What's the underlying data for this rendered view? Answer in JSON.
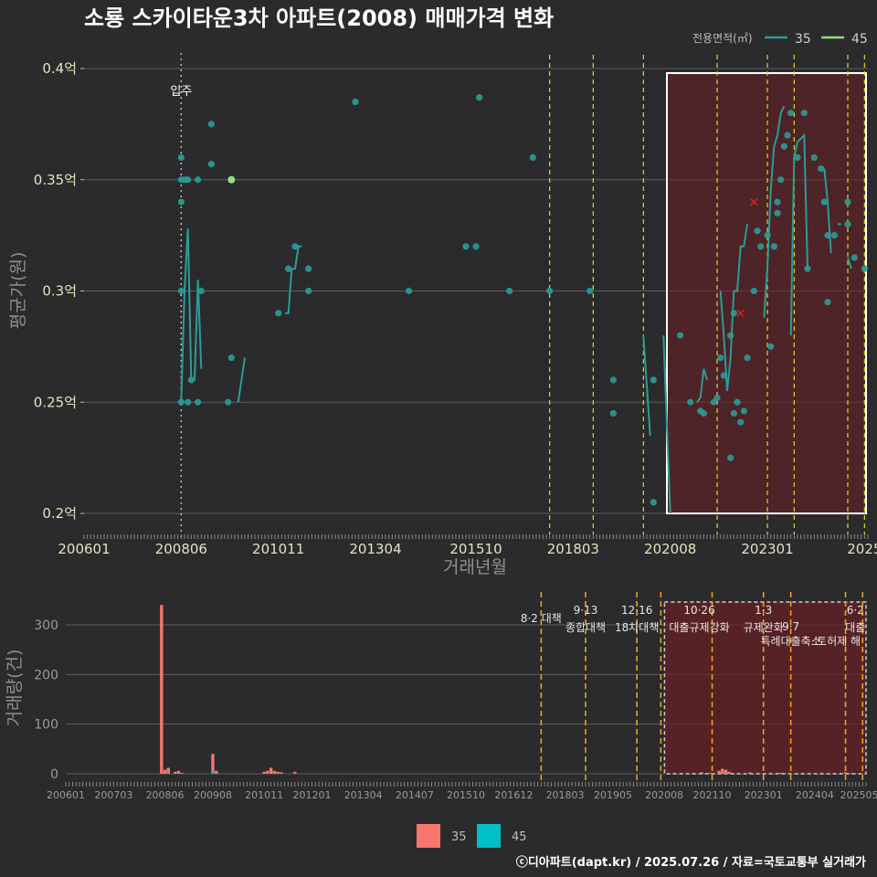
{
  "title": "소룡 스카이타운3차 아파트(2008) 매매가격 변화",
  "footer": "ⓒ디아파트(dapt.kr) / 2025.07.26 / 자료=국토교통부 실거래가",
  "colors": {
    "bg": "#2b2b2d",
    "grid": "#5c5c5c",
    "s35_line": "#2a9d96",
    "s45_line": "#8fe07a",
    "vol35": "#f8766d",
    "vol45": "#00bfc4",
    "policy": "#d9d92a",
    "policy_vol": "#e8a21a",
    "highlight": "#6b1f24",
    "cancel": "#e32020"
  },
  "price_chart": {
    "ylabel": "평균가(원)",
    "xlabel": "거래년월",
    "ytick_labels": [
      "0.2억",
      "0.25억",
      "0.3억",
      "0.35억",
      "0.4억"
    ],
    "xtick_labels": [
      "200601",
      "200806",
      "201011",
      "201304",
      "201510",
      "201803",
      "202008",
      "202301",
      "2025"
    ],
    "legend_title": "전용면적(㎡)",
    "legend": [
      "35",
      "45"
    ],
    "move_in_label": "입주"
  },
  "volume_chart": {
    "ylabel": "거래량(건)",
    "ytick_labels": [
      "0",
      "100",
      "200",
      "300"
    ],
    "xtick_labels": [
      "200601",
      "200703",
      "200806",
      "200908",
      "201011",
      "201201",
      "201304",
      "201407",
      "201510",
      "201612",
      "201803",
      "201905",
      "202008",
      "202110",
      "202301",
      "202404",
      "202505"
    ],
    "legend": [
      "35",
      "45"
    ],
    "policies": [
      {
        "date": "8·2 대책",
        "text": ""
      },
      {
        "date": "9·13",
        "text": "종합대책"
      },
      {
        "date": "12·16",
        "text": "18차대책"
      },
      {
        "date": "10·26",
        "text": "대출규제강화"
      },
      {
        "date": "1·3",
        "text": "규제완화"
      },
      {
        "date": "9·7",
        "text": "특례대출축소"
      },
      {
        "date": "",
        "text": "토허제 해"
      },
      {
        "date": "6·2",
        "text": "대출"
      }
    ]
  },
  "chart_data": [
    {
      "type": "line",
      "title": "소룡 스카이타운3차 아파트(2008) 매매가격 변화",
      "xlabel": "거래년월",
      "ylabel": "평균가(원)",
      "ylim": [
        0.2,
        0.4
      ],
      "y_unit": "억",
      "xlim": [
        "2006-01",
        "2025-07"
      ],
      "grid": true,
      "legend_position": "top-right",
      "series": [
        {
          "name": "35",
          "line_segments": [
            [
              [
                "2008-06",
                0.25
              ],
              [
                "2008-07",
                0.3
              ],
              [
                "2008-08",
                0.328
              ],
              [
                "2008-09",
                0.26
              ],
              [
                "2008-10",
                0.26
              ],
              [
                "2008-11",
                0.305
              ],
              [
                "2008-12",
                0.265
              ]
            ],
            [
              [
                "2009-11",
                0.25
              ],
              [
                "2010-01",
                0.27
              ]
            ],
            [
              [
                "2011-01",
                0.29
              ],
              [
                "2011-02",
                0.29
              ],
              [
                "2011-03",
                0.31
              ],
              [
                "2011-04",
                0.31
              ],
              [
                "2011-05",
                0.32
              ],
              [
                "2011-06",
                0.32
              ]
            ],
            [
              [
                "2019-12",
                0.28
              ],
              [
                "2020-02",
                0.235
              ]
            ],
            [
              [
                "2020-06",
                0.28
              ],
              [
                "2020-08",
                0.2
              ]
            ],
            [
              [
                "2021-04",
                0.25
              ],
              [
                "2021-05",
                0.252
              ],
              [
                "2021-06",
                0.265
              ],
              [
                "2021-07",
                0.26
              ]
            ],
            [
              [
                "2021-11",
                0.3
              ],
              [
                "2021-12",
                0.28
              ],
              [
                "2022-01",
                0.255
              ],
              [
                "2022-02",
                0.27
              ],
              [
                "2022-03",
                0.3
              ],
              [
                "2022-04",
                0.3
              ],
              [
                "2022-05",
                0.32
              ],
              [
                "2022-06",
                0.32
              ],
              [
                "2022-07",
                0.33
              ]
            ],
            [
              [
                "2022-12",
                0.288
              ],
              [
                "2023-01",
                0.31
              ],
              [
                "2023-02",
                0.345
              ],
              [
                "2023-03",
                0.365
              ],
              [
                "2023-04",
                0.37
              ],
              [
                "2023-05",
                0.38
              ],
              [
                "2023-06",
                0.383
              ]
            ],
            [
              [
                "2023-08",
                0.28
              ],
              [
                "2023-09",
                0.36
              ],
              [
                "2023-10",
                0.367
              ],
              [
                "2023-12",
                0.37
              ],
              [
                "2024-01",
                0.31
              ]
            ],
            [
              [
                "2024-06",
                0.355
              ],
              [
                "2024-07",
                0.34
              ],
              [
                "2024-08",
                0.317
              ]
            ],
            [
              [
                "2024-10",
                0.33
              ],
              [
                "2024-11",
                0.33
              ]
            ],
            [
              [
                "2025-01",
                0.315
              ],
              [
                "2025-02",
                0.31
              ]
            ]
          ],
          "points": [
            [
              "2008-06",
              0.36
            ],
            [
              "2008-06",
              0.35
            ],
            [
              "2008-06",
              0.34
            ],
            [
              "2008-06",
              0.3
            ],
            [
              "2008-06",
              0.25
            ],
            [
              "2008-07",
              0.35
            ],
            [
              "2008-08",
              0.35
            ],
            [
              "2008-08",
              0.25
            ],
            [
              "2008-09",
              0.26
            ],
            [
              "2008-11",
              0.35
            ],
            [
              "2008-11",
              0.25
            ],
            [
              "2008-12",
              0.3
            ],
            [
              "2009-03",
              0.357
            ],
            [
              "2009-03",
              0.375
            ],
            [
              "2009-08",
              0.25
            ],
            [
              "2009-09",
              0.27
            ],
            [
              "2010-11",
              0.29
            ],
            [
              "2011-02",
              0.31
            ],
            [
              "2011-04",
              0.32
            ],
            [
              "2011-08",
              0.31
            ],
            [
              "2011-08",
              0.3
            ],
            [
              "2012-10",
              0.385
            ],
            [
              "2014-02",
              0.3
            ],
            [
              "2015-07",
              0.32
            ],
            [
              "2015-10",
              0.32
            ],
            [
              "2015-11",
              0.387
            ],
            [
              "2016-08",
              0.3
            ],
            [
              "2017-03",
              0.36
            ],
            [
              "2017-08",
              0.3
            ],
            [
              "2018-08",
              0.3
            ],
            [
              "2019-03",
              0.26
            ],
            [
              "2019-03",
              0.245
            ],
            [
              "2020-03",
              0.26
            ],
            [
              "2020-03",
              0.205
            ],
            [
              "2020-11",
              0.28
            ],
            [
              "2021-02",
              0.25
            ],
            [
              "2021-05",
              0.246
            ],
            [
              "2021-06",
              0.245
            ],
            [
              "2021-09",
              0.25
            ],
            [
              "2021-10",
              0.252
            ],
            [
              "2021-11",
              0.27
            ],
            [
              "2021-12",
              0.262
            ],
            [
              "2022-02",
              0.28
            ],
            [
              "2022-02",
              0.225
            ],
            [
              "2022-03",
              0.245
            ],
            [
              "2022-03",
              0.29
            ],
            [
              "2022-04",
              0.25
            ],
            [
              "2022-05",
              0.241
            ],
            [
              "2022-06",
              0.246
            ],
            [
              "2022-07",
              0.27
            ],
            [
              "2022-09",
              0.3
            ],
            [
              "2022-10",
              0.327
            ],
            [
              "2022-11",
              0.32
            ],
            [
              "2023-01",
              0.325
            ],
            [
              "2023-02",
              0.275
            ],
            [
              "2023-03",
              0.32
            ],
            [
              "2023-04",
              0.335
            ],
            [
              "2023-04",
              0.34
            ],
            [
              "2023-05",
              0.35
            ],
            [
              "2023-06",
              0.365
            ],
            [
              "2023-07",
              0.37
            ],
            [
              "2023-08",
              0.38
            ],
            [
              "2023-10",
              0.36
            ],
            [
              "2023-12",
              0.38
            ],
            [
              "2024-01",
              0.31
            ],
            [
              "2024-03",
              0.36
            ],
            [
              "2024-05",
              0.355
            ],
            [
              "2024-06",
              0.34
            ],
            [
              "2024-07",
              0.325
            ],
            [
              "2024-07",
              0.295
            ],
            [
              "2024-09",
              0.325
            ],
            [
              "2025-01",
              0.34
            ],
            [
              "2025-01",
              0.33
            ],
            [
              "2025-03",
              0.315
            ],
            [
              "2025-06",
              0.31
            ]
          ]
        },
        {
          "name": "45",
          "points": [
            [
              "2009-09",
              0.35
            ]
          ]
        }
      ],
      "cancelled_marks": [
        [
          "2022-05",
          0.29
        ],
        [
          "2022-09",
          0.34
        ]
      ],
      "move_in": "2008-06",
      "policy_lines": [
        "2017-08",
        "2018-09",
        "2019-12",
        "2021-10",
        "2023-01",
        "2023-09",
        "2025-01",
        "2025-06"
      ],
      "highlight_range": [
        "2020-07",
        "2025-07"
      ]
    },
    {
      "type": "bar",
      "ylabel": "거래량(건)",
      "ylim": [
        0,
        350
      ],
      "grid": true,
      "legend_position": "bottom",
      "series": [
        {
          "name": "35",
          "values": [
            [
              "2008-05",
              340
            ],
            [
              "2008-06",
              8
            ],
            [
              "2008-07",
              12
            ],
            [
              "2008-09",
              4
            ],
            [
              "2008-10",
              6
            ],
            [
              "2008-11",
              2
            ],
            [
              "2009-08",
              40
            ],
            [
              "2009-09",
              6
            ],
            [
              "2010-11",
              4
            ],
            [
              "2010-12",
              6
            ],
            [
              "2011-01",
              12
            ],
            [
              "2011-02",
              6
            ],
            [
              "2011-03",
              4
            ],
            [
              "2011-04",
              3
            ],
            [
              "2011-08",
              4
            ],
            [
              "2021-07",
              3
            ],
            [
              "2021-09",
              2
            ],
            [
              "2021-10",
              2
            ],
            [
              "2021-12",
              6
            ],
            [
              "2022-01",
              10
            ],
            [
              "2022-02",
              8
            ],
            [
              "2022-03",
              4
            ],
            [
              "2022-09",
              3
            ],
            [
              "2023-03",
              2
            ],
            [
              "2023-06",
              2
            ],
            [
              "2025-01",
              3
            ],
            [
              "2025-03",
              2
            ]
          ]
        },
        {
          "name": "45",
          "values": [
            [
              "2009-08",
              4
            ]
          ]
        }
      ],
      "highlight_range": [
        "2020-07",
        "2025-07"
      ]
    }
  ]
}
